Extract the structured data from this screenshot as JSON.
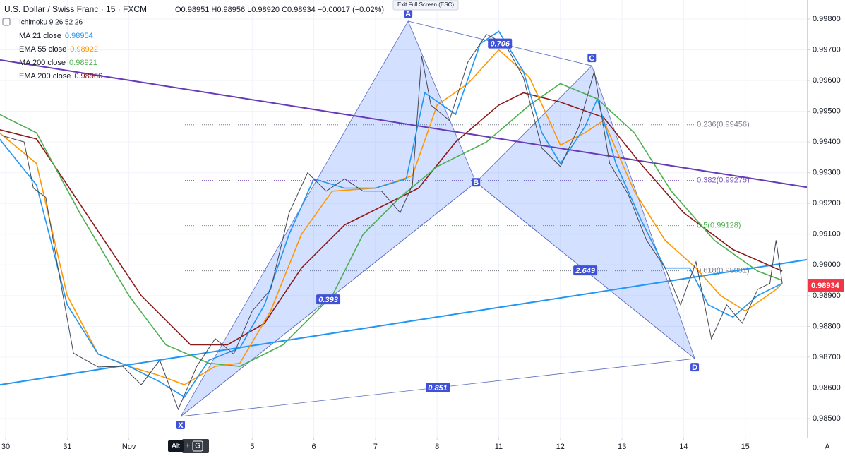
{
  "chart_data": {
    "type": "line",
    "title": "U.S. Dollar / Swiss Franc · 15 · FXCM",
    "ohlc": "O0.98951  H0.98956  L0.98920  C0.98934  −0.00017 (−0.02%)",
    "indicator": "Ichimoku 9 26 52 26",
    "xlim": [
      -0.092,
      13.0
    ],
    "ylim": [
      0.98438,
      0.99862
    ],
    "xticks": [
      {
        "value": 0,
        "label": "30"
      },
      {
        "value": 1,
        "label": "31"
      },
      {
        "value": 2,
        "label": "Nov"
      },
      {
        "value": 4,
        "label": "5"
      },
      {
        "value": 5,
        "label": "6"
      },
      {
        "value": 6,
        "label": "7"
      },
      {
        "value": 7,
        "label": "8"
      },
      {
        "value": 8,
        "label": "11"
      },
      {
        "value": 9,
        "label": "12"
      },
      {
        "value": 10,
        "label": "13"
      },
      {
        "value": 11,
        "label": "14"
      },
      {
        "value": 12,
        "label": "15"
      }
    ],
    "yticks": [
      {
        "value": 0.985,
        "label": "0.98500"
      },
      {
        "value": 0.986,
        "label": "0.98600"
      },
      {
        "value": 0.987,
        "label": "0.98700"
      },
      {
        "value": 0.988,
        "label": "0.98800"
      },
      {
        "value": 0.989,
        "label": "0.98900"
      },
      {
        "value": 0.99,
        "label": "0.99000"
      },
      {
        "value": 0.991,
        "label": "0.99100"
      },
      {
        "value": 0.992,
        "label": "0.99200"
      },
      {
        "value": 0.993,
        "label": "0.99300"
      },
      {
        "value": 0.994,
        "label": "0.99400"
      },
      {
        "value": 0.995,
        "label": "0.99500"
      },
      {
        "value": 0.996,
        "label": "0.99600"
      },
      {
        "value": 0.997,
        "label": "0.99700"
      },
      {
        "value": 0.998,
        "label": "0.99800"
      }
    ],
    "grid": true,
    "price": {
      "color": "#434651",
      "x": [
        -0.05,
        0.3,
        0.45,
        0.65,
        0.85,
        1.1,
        1.5,
        1.9,
        2.2,
        2.5,
        2.8,
        3.1,
        3.4,
        3.7,
        4.0,
        4.3,
        4.6,
        4.9,
        5.2,
        5.5,
        5.8,
        6.1,
        6.4,
        6.6,
        6.75,
        6.9,
        7.2,
        7.5,
        7.8,
        8.1,
        8.4,
        8.7,
        9.0,
        9.3,
        9.55,
        9.8,
        10.1,
        10.4,
        10.7,
        10.95,
        11.2,
        11.45,
        11.7,
        11.95,
        12.2,
        12.4,
        12.5,
        12.6
      ],
      "values": [
        0.9942,
        0.994,
        0.9925,
        0.9922,
        0.9899,
        0.98713,
        0.98668,
        0.9867,
        0.9861,
        0.9869,
        0.9853,
        0.9867,
        0.9876,
        0.9871,
        0.9885,
        0.9892,
        0.9917,
        0.993,
        0.9924,
        0.9928,
        0.9924,
        0.9924,
        0.9917,
        0.9926,
        0.9968,
        0.9952,
        0.9947,
        0.9966,
        0.9975,
        0.9972,
        0.9961,
        0.9938,
        0.9932,
        0.9945,
        0.9963,
        0.9933,
        0.9923,
        0.9908,
        0.9899,
        0.9887,
        0.9901,
        0.9876,
        0.9887,
        0.9881,
        0.9892,
        0.9894,
        0.9908,
        0.9894
      ]
    },
    "series": [
      {
        "name": "MA 21 close",
        "color": "#2196f3",
        "legend_value": {
          "value": 0.98954,
          "label": "0.98954"
        },
        "x": [
          -0.1,
          0.5,
          1.0,
          1.5,
          2.0,
          2.5,
          2.9,
          3.3,
          3.8,
          4.2,
          4.6,
          5.0,
          5.5,
          6.0,
          6.5,
          6.8,
          7.3,
          7.7,
          8.0,
          8.4,
          8.7,
          9.0,
          9.4,
          9.6,
          9.9,
          10.3,
          10.7,
          11.1,
          11.4,
          11.8,
          12.2,
          12.6
        ],
        "values": [
          0.9941,
          0.9926,
          0.9887,
          0.9871,
          0.9867,
          0.9862,
          0.9857,
          0.9869,
          0.9873,
          0.9887,
          0.991,
          0.9928,
          0.9925,
          0.9925,
          0.9928,
          0.9956,
          0.9949,
          0.9972,
          0.9976,
          0.9963,
          0.9943,
          0.9933,
          0.9945,
          0.9954,
          0.9933,
          0.9915,
          0.9899,
          0.9899,
          0.9887,
          0.9883,
          0.989,
          0.9894
        ]
      },
      {
        "name": "EMA 55 close",
        "color": "#ff9800",
        "legend_value": {
          "value": 0.98922,
          "label": "0.98922"
        },
        "x": [
          -0.1,
          0.5,
          1.0,
          1.5,
          2.0,
          2.5,
          2.9,
          3.4,
          3.8,
          4.3,
          4.8,
          5.3,
          6.0,
          6.6,
          7.0,
          7.5,
          8.0,
          8.5,
          9.0,
          9.4,
          9.7,
          10.2,
          10.7,
          11.2,
          11.6,
          12.0,
          12.5,
          12.6
        ],
        "values": [
          0.9943,
          0.9933,
          0.989,
          0.9871,
          0.9867,
          0.9864,
          0.9861,
          0.9867,
          0.9868,
          0.9885,
          0.991,
          0.9924,
          0.9925,
          0.9929,
          0.9952,
          0.9959,
          0.997,
          0.9961,
          0.9939,
          0.9943,
          0.9947,
          0.9924,
          0.9908,
          0.9899,
          0.989,
          0.9885,
          0.9892,
          0.9894
        ]
      },
      {
        "name": "MA 200 close",
        "color": "#4caf50",
        "legend_value": {
          "value": 0.98921,
          "label": "0.98921"
        },
        "x": [
          -0.1,
          0.5,
          1.2,
          2.0,
          2.6,
          3.3,
          3.8,
          4.5,
          5.3,
          5.8,
          6.4,
          7.0,
          7.8,
          8.5,
          9.0,
          9.6,
          10.2,
          10.8,
          11.5,
          12.2,
          12.6
        ],
        "values": [
          0.9949,
          0.9943,
          0.9917,
          0.989,
          0.9874,
          0.9868,
          0.9867,
          0.9874,
          0.989,
          0.991,
          0.9922,
          0.9932,
          0.994,
          0.9952,
          0.9959,
          0.9954,
          0.9943,
          0.9924,
          0.9908,
          0.9898,
          0.9895
        ]
      },
      {
        "name": "EMA 200 close",
        "color": "#8b1a1a",
        "legend_value": {
          "value": 0.98966,
          "label": "0.98966"
        },
        "x": [
          -0.1,
          0.5,
          1.3,
          2.2,
          3.0,
          3.6,
          4.2,
          4.8,
          5.5,
          6.2,
          6.7,
          7.3,
          8.0,
          8.4,
          9.0,
          9.7,
          10.3,
          11.0,
          11.8,
          12.6
        ],
        "values": [
          0.9944,
          0.9941,
          0.9917,
          0.989,
          0.9874,
          0.9874,
          0.9881,
          0.9899,
          0.9913,
          0.992,
          0.9925,
          0.994,
          0.9952,
          0.9956,
          0.9953,
          0.9948,
          0.9933,
          0.9917,
          0.9905,
          0.9898
        ]
      }
    ],
    "pattern": {
      "color": "#5c6bc0",
      "points": [
        {
          "label": "X",
          "x": 2.84,
          "value": 0.98507
        },
        {
          "label": "A",
          "x": 6.53,
          "value": 0.99793
        },
        {
          "label": "B",
          "x": 7.63,
          "value": 0.99269
        },
        {
          "label": "C",
          "x": 9.51,
          "value": 0.99648
        },
        {
          "label": "D",
          "x": 11.18,
          "value": 0.98695
        }
      ],
      "ratios": [
        {
          "label": "0.393",
          "from": 0,
          "to": 2
        },
        {
          "label": "0.706",
          "from": 1,
          "to": 3
        },
        {
          "label": "2.649",
          "from": 2,
          "to": 4
        },
        {
          "label": "0.851",
          "from": 0,
          "to": 4
        }
      ]
    },
    "fib_levels": [
      {
        "value": 0.99456,
        "label": "0.236(0.99456)",
        "color": "#787b86"
      },
      {
        "value": 0.99275,
        "label": "0.382(0.99275)",
        "color": "#7e57c2"
      },
      {
        "value": 0.99128,
        "label": "0.5(0.99128)",
        "color": "#4caf50"
      },
      {
        "value": 0.98981,
        "label": "0.618(0.98981)",
        "color": "#787b86"
      }
    ],
    "trendlines": [
      {
        "color": "#673ab7",
        "x": [
          -0.092,
          13.0
        ],
        "values": [
          0.99667,
          0.99253
        ]
      },
      {
        "color": "#2196f3",
        "x": [
          -0.092,
          13.0
        ],
        "values": [
          0.9861,
          0.99017
        ]
      }
    ],
    "last_price": {
      "value": 0.98934,
      "label": "0.98934",
      "color": "#f23645"
    }
  },
  "ui": {
    "exit_fullscreen": "Exit Full Screen (ESC)",
    "hotkey_alt": "Alt",
    "hotkey_plus": "+",
    "hotkey_key": "G",
    "auto_scale": "A"
  }
}
